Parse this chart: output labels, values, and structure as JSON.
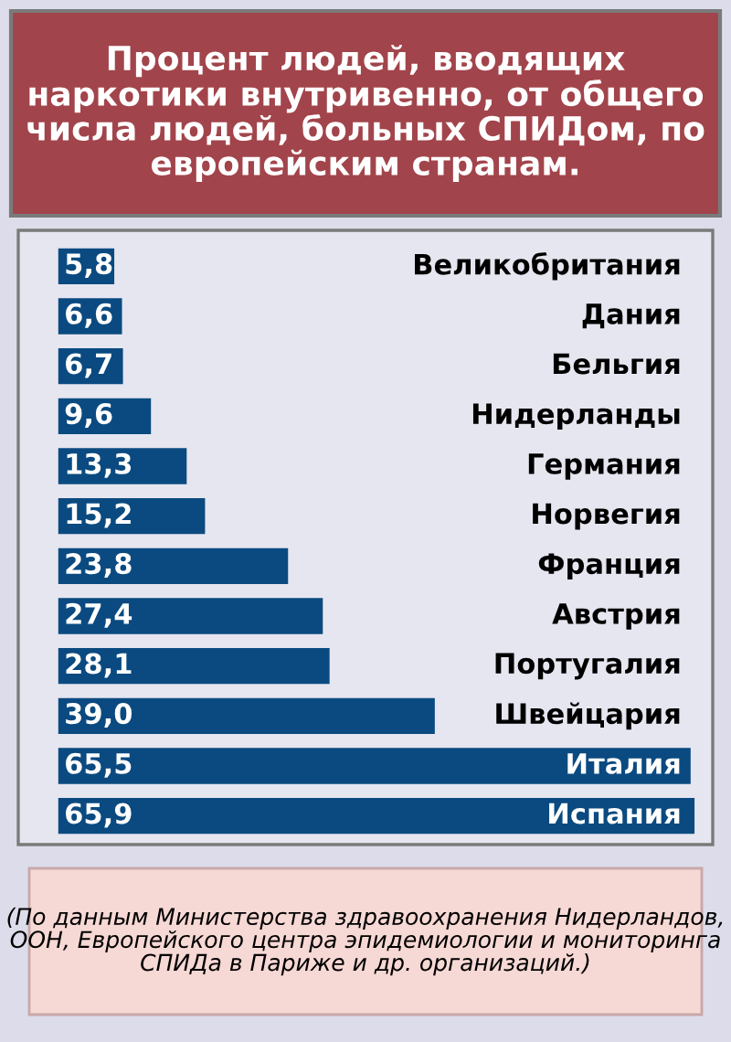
{
  "chart_data": {
    "type": "bar",
    "orientation": "horizontal",
    "title": "Процент людей, вводящих наркотики внутривенно, от общего числа людей, больных СПИДом, по европейским странам.",
    "categories": [
      "Великобритания",
      "Дания",
      "Бельгия",
      "Нидерланды",
      "Германия",
      "Норвегия",
      "Франция",
      "Австрия",
      "Португалия",
      "Швейцария",
      "Италия",
      "Испания"
    ],
    "values": [
      5.8,
      6.6,
      6.7,
      9.6,
      13.3,
      15.2,
      23.8,
      27.4,
      28.1,
      39.0,
      65.5,
      65.9
    ],
    "value_labels": [
      "5,8",
      "6,6",
      "6,7",
      "9,6",
      "13,3",
      "15,2",
      "23,8",
      "27,4",
      "28,1",
      "39,0",
      "65,5",
      "65,9"
    ],
    "color": "#0a4a80",
    "annotations": [
      "(По данным Министерства здравоохранения Нидерландов, ООН, Европейского центра эпидемиологии и мониторинга СПИДа в Париже и др. организаций.)"
    ]
  }
}
